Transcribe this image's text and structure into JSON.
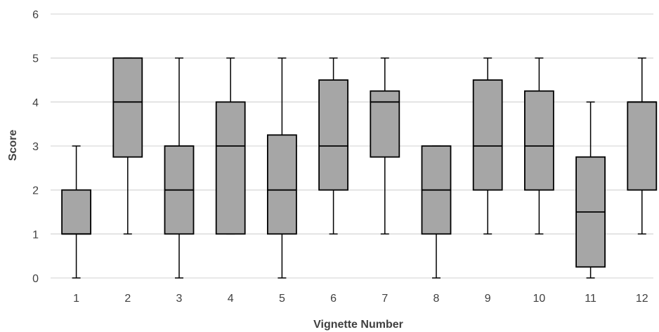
{
  "chart_data": {
    "type": "boxplot",
    "title": "",
    "xlabel": "Vignette Number",
    "ylabel": "Score",
    "ylim": [
      0,
      6
    ],
    "yticks": [
      0,
      1,
      2,
      3,
      4,
      5,
      6
    ],
    "grid": true,
    "box_color": "#a6a6a6",
    "grid_color": "#d9d9d9",
    "categories": [
      "1",
      "2",
      "3",
      "4",
      "5",
      "6",
      "7",
      "8",
      "9",
      "10",
      "11",
      "12"
    ],
    "boxes": [
      {
        "min": 0,
        "q1": 1,
        "median": 1,
        "q3": 2,
        "max": 3
      },
      {
        "min": 1,
        "q1": 2.75,
        "median": 4,
        "q3": 5,
        "max": 5
      },
      {
        "min": 0,
        "q1": 1,
        "median": 2,
        "q3": 3,
        "max": 5
      },
      {
        "min": 1,
        "q1": 1,
        "median": 3,
        "q3": 4,
        "max": 5
      },
      {
        "min": 0,
        "q1": 1,
        "median": 2,
        "q3": 3.25,
        "max": 5
      },
      {
        "min": 1,
        "q1": 2,
        "median": 3,
        "q3": 4.5,
        "max": 5
      },
      {
        "min": 1,
        "q1": 2.75,
        "median": 4,
        "q3": 4.25,
        "max": 5
      },
      {
        "min": 0,
        "q1": 1,
        "median": 2,
        "q3": 3,
        "max": 3
      },
      {
        "min": 1,
        "q1": 2,
        "median": 3,
        "q3": 4.5,
        "max": 5
      },
      {
        "min": 1,
        "q1": 2,
        "median": 3,
        "q3": 4.25,
        "max": 5
      },
      {
        "min": 0,
        "q1": 0.25,
        "median": 1.5,
        "q3": 2.75,
        "max": 4
      },
      {
        "min": 1,
        "q1": 2,
        "median": 4,
        "q3": 4,
        "max": 5
      }
    ]
  }
}
